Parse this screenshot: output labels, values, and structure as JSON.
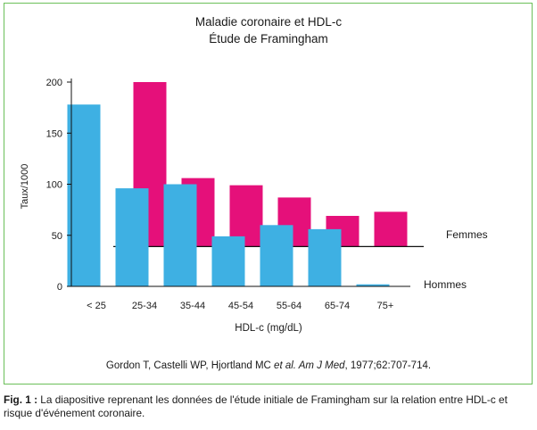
{
  "chart_data": {
    "type": "bar",
    "title": "Maladie coronaire et HDL-c",
    "subtitle": "Étude de Framingham",
    "xlabel": "HDL-c (mg/dL)",
    "ylabel": "Taux/1000",
    "categories": [
      "< 25",
      "25-34",
      "35-44",
      "45-54",
      "55-64",
      "65-74",
      "75+"
    ],
    "yticks": [
      0,
      50,
      100,
      150,
      200
    ],
    "ylim": [
      0,
      200
    ],
    "series": [
      {
        "name": "Hommes",
        "values": [
          178,
          96,
          100,
          49,
          60,
          56,
          2
        ],
        "baseline": 0,
        "color": "#3eb0e3"
      },
      {
        "name": "Femmes",
        "values": [
          null,
          200,
          106,
          99,
          87,
          69,
          73
        ],
        "baseline": 39,
        "color": "#e5107a"
      }
    ],
    "grid": false,
    "legend": "right"
  },
  "source": {
    "pre": "Gordon T, Castelli WP, Hjortland MC ",
    "italic": "et al. Am J Med",
    "post": ", 1977;62:707-714."
  },
  "caption": {
    "label": "Fig. 1 :",
    "text": " La diapositive reprenant les données de l'étude initiale de Framingham sur la relation entre HDL-c et risque d'événement coronaire."
  }
}
